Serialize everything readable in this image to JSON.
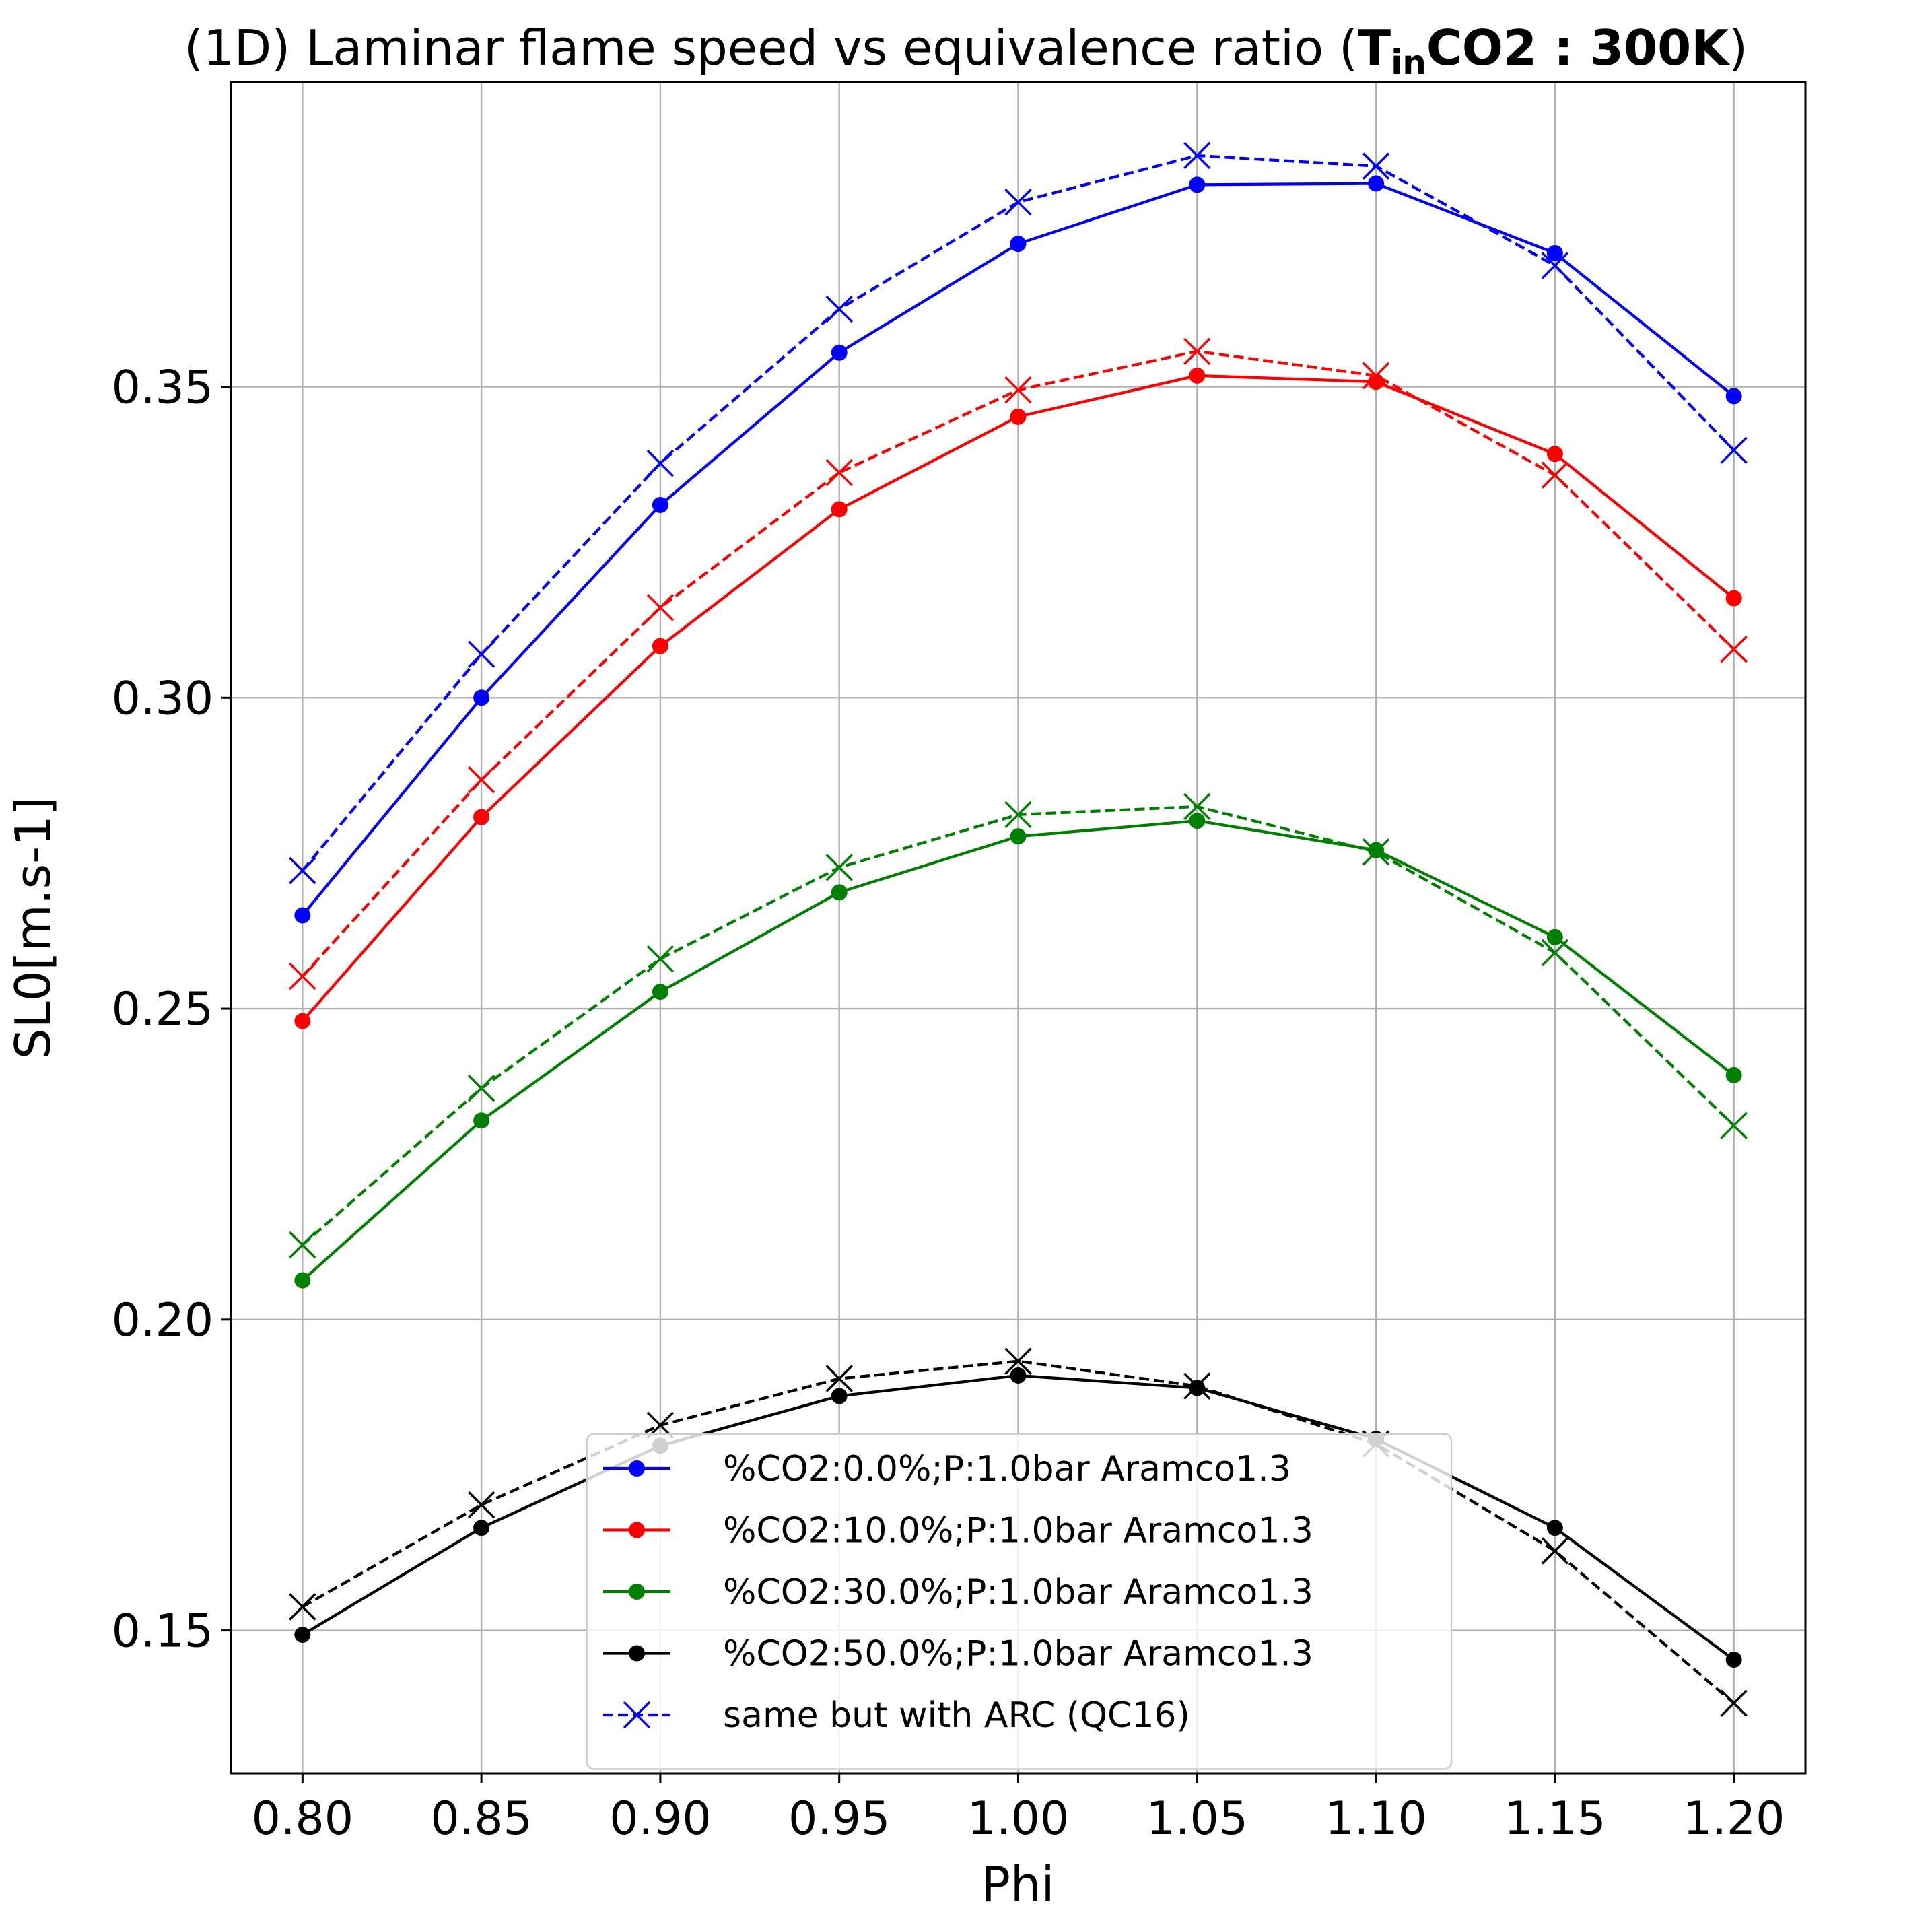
{
  "chart_data": {
    "type": "line",
    "title": "(1D) Laminar flame speed vs equivalence ratio (",
    "title_bold": "T",
    "title_bold_sub": "in",
    "title_bold_rest": "CO2 : 300K",
    "title_end": ")",
    "xlabel": "Phi",
    "ylabel": "SL0[m.s-1]",
    "xlim": [
      0.78,
      1.22
    ],
    "ylim": [
      0.127,
      0.399
    ],
    "xticks": [
      "0.80",
      "0.85",
      "0.90",
      "0.95",
      "1.00",
      "1.05",
      "1.10",
      "1.15",
      "1.20"
    ],
    "yticks": [
      "0.15",
      "0.20",
      "0.25",
      "0.30",
      "0.35"
    ],
    "grid": true,
    "legend_position": "lower-center",
    "x": [
      0.8,
      0.85,
      0.9,
      0.95,
      1.0,
      1.05,
      1.1,
      1.15,
      1.2
    ],
    "series": [
      {
        "name": "%CO2:0.0%;P:1.0bar Aramco1.3",
        "color": "#0000ff",
        "style": "solid",
        "marker": "circle",
        "values": [
          0.265,
          0.3,
          0.331,
          0.3555,
          0.373,
          0.3825,
          0.3827,
          0.3715,
          0.3485
        ]
      },
      {
        "name": "%CO2:10.0%;P:1.0bar Aramco1.3",
        "color": "#ff0000",
        "style": "solid",
        "marker": "circle",
        "values": [
          0.248,
          0.2808,
          0.3083,
          0.3303,
          0.3452,
          0.3518,
          0.3508,
          0.3392,
          0.316
        ]
      },
      {
        "name": "%CO2:30.0%;P:1.0bar Aramco1.3",
        "color": "#008000",
        "style": "solid",
        "marker": "circle",
        "values": [
          0.2063,
          0.232,
          0.2527,
          0.2687,
          0.2777,
          0.2802,
          0.2755,
          0.2615,
          0.2393
        ]
      },
      {
        "name": "%CO2:50.0%;P:1.0bar Aramco1.3",
        "color": "#000000",
        "style": "solid",
        "marker": "circle",
        "values": [
          0.1493,
          0.1665,
          0.1797,
          0.1877,
          0.191,
          0.189,
          0.1808,
          0.1665,
          0.1453
        ]
      },
      {
        "name": "same but with ARC (QC16)",
        "color": "#0000ff",
        "style": "dashed",
        "marker": "x",
        "values": [
          0.2722,
          0.307,
          0.3377,
          0.3625,
          0.3797,
          0.3872,
          0.3855,
          0.3695,
          0.3398
        ]
      },
      {
        "color": "#ff0000",
        "style": "dashed",
        "marker": "x",
        "values": [
          0.2552,
          0.2868,
          0.3145,
          0.3362,
          0.3495,
          0.3557,
          0.3518,
          0.3358,
          0.3078
        ]
      },
      {
        "color": "#008000",
        "style": "dashed",
        "marker": "x",
        "values": [
          0.212,
          0.2372,
          0.258,
          0.2727,
          0.2812,
          0.2825,
          0.2752,
          0.259,
          0.2312
        ]
      },
      {
        "color": "#000000",
        "style": "dashed",
        "marker": "x",
        "values": [
          0.1538,
          0.1702,
          0.183,
          0.1905,
          0.1933,
          0.1893,
          0.18,
          0.1628,
          0.1383
        ]
      }
    ]
  }
}
